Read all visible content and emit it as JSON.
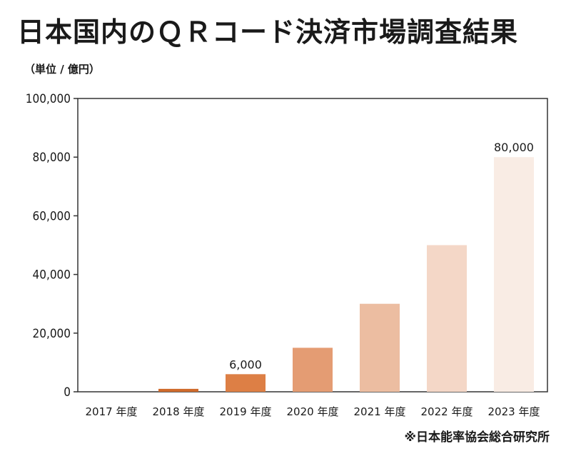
{
  "title": "日本国内のＱＲコード決済市場調査結果",
  "unit_label": "（単位 / 億円）",
  "source": "※日本能率協会総合研究所",
  "chart_data": {
    "type": "bar",
    "categories": [
      "2017 年度",
      "2018 年度",
      "2019 年度",
      "2020 年度",
      "2021 年度",
      "2022 年度",
      "2023 年度"
    ],
    "values": [
      0,
      1000,
      6000,
      15000,
      30000,
      50000,
      80000
    ],
    "data_labels": [
      "",
      "",
      "6,000",
      "",
      "",
      "",
      "80,000"
    ],
    "bar_colors": [
      "#c9611f",
      "#cf6a2b",
      "#dd7f45",
      "#e49c73",
      "#ecbda1",
      "#f4d7c7",
      "#f9ece4"
    ],
    "ylim": [
      0,
      100000
    ],
    "yticks": [
      0,
      20000,
      40000,
      60000,
      80000,
      100000
    ],
    "ytick_labels": [
      "0",
      "20,000",
      "40,000",
      "60,000",
      "80,000",
      "100,000"
    ],
    "grid": false
  }
}
